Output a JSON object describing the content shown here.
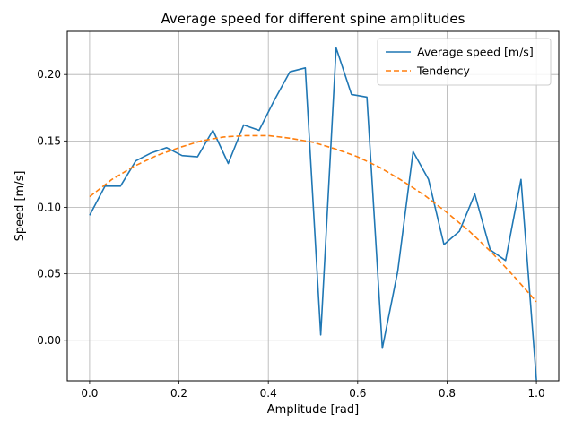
{
  "chart_data": {
    "type": "line",
    "title": "Average speed for different spine amplitudes",
    "xlabel": "Amplitude [rad]",
    "ylabel": "Speed [m/s]",
    "xlim": [
      -0.05,
      1.05
    ],
    "ylim": [
      -0.0305,
      0.2325
    ],
    "xticks": [
      0.0,
      0.2,
      0.4,
      0.6,
      0.8,
      1.0
    ],
    "xtick_labels": [
      "0.0",
      "0.2",
      "0.4",
      "0.6",
      "0.8",
      "1.0"
    ],
    "yticks": [
      0.0,
      0.05,
      0.1,
      0.15,
      0.2
    ],
    "ytick_labels": [
      "0.00",
      "0.05",
      "0.10",
      "0.15",
      "0.20"
    ],
    "grid": true,
    "legend_position": "top-right",
    "series": [
      {
        "name": "Average speed [m/s]",
        "color": "#1f77b4",
        "style": "solid",
        "x": [
          0.0,
          0.0345,
          0.069,
          0.1034,
          0.1379,
          0.1724,
          0.2069,
          0.2414,
          0.2759,
          0.3103,
          0.3448,
          0.3793,
          0.4138,
          0.4483,
          0.4828,
          0.5172,
          0.5517,
          0.5862,
          0.6207,
          0.6552,
          0.6897,
          0.7241,
          0.7586,
          0.7931,
          0.8276,
          0.8621,
          0.8966,
          0.931,
          0.9655,
          1.0
        ],
        "y": [
          0.094,
          0.116,
          0.116,
          0.135,
          0.141,
          0.145,
          0.139,
          0.138,
          0.158,
          0.133,
          0.162,
          0.158,
          0.181,
          0.202,
          0.205,
          0.004,
          0.22,
          0.185,
          0.183,
          -0.006,
          0.052,
          0.142,
          0.121,
          0.072,
          0.082,
          0.11,
          0.068,
          0.06,
          0.121,
          -0.03
        ]
      },
      {
        "name": "Tendency",
        "color": "#ff7f0e",
        "style": "dashed",
        "x": [
          0.0,
          0.05,
          0.1,
          0.15,
          0.2,
          0.25,
          0.3,
          0.35,
          0.4,
          0.45,
          0.5,
          0.55,
          0.6,
          0.65,
          0.7,
          0.75,
          0.8,
          0.85,
          0.9,
          0.95,
          1.0
        ],
        "y": [
          0.108,
          0.121,
          0.131,
          0.139,
          0.145,
          0.15,
          0.153,
          0.154,
          0.154,
          0.152,
          0.149,
          0.144,
          0.138,
          0.13,
          0.12,
          0.109,
          0.096,
          0.082,
          0.066,
          0.048,
          0.029
        ]
      }
    ]
  }
}
